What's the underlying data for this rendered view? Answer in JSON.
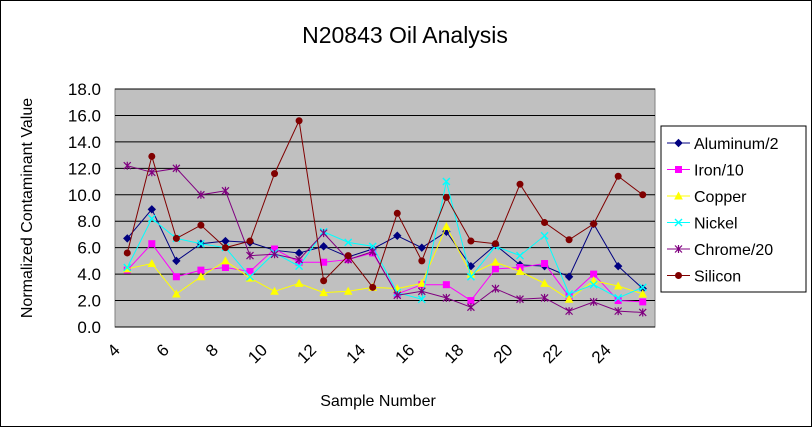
{
  "chart_data": {
    "type": "line",
    "title": "N20843 Oil Analysis",
    "xlabel": "Sample Number",
    "ylabel": "Normalized Contaminant Value",
    "xlim": [
      4,
      26
    ],
    "ylim": [
      0,
      18
    ],
    "y_ticks": [
      "0.0",
      "2.0",
      "4.0",
      "6.0",
      "8.0",
      "10.0",
      "12.0",
      "14.0",
      "16.0",
      "18.0"
    ],
    "x_ticks": [
      "4",
      "6",
      "8",
      "10",
      "12",
      "14",
      "16",
      "18",
      "20",
      "22",
      "24"
    ],
    "grid": "horizontal",
    "legend_position": "right",
    "plot_background": "#c0c0c0",
    "x": [
      4.5,
      5.5,
      6.5,
      7.5,
      8.5,
      9.5,
      10.5,
      11.5,
      12.5,
      13.5,
      14.5,
      15.5,
      16.5,
      17.5,
      18.5,
      19.5,
      20.5,
      21.5,
      22.5,
      23.5,
      24.5,
      25.5
    ],
    "series": [
      {
        "name": "Aluminum/2",
        "color": "#000080",
        "marker": "diamond",
        "values": [
          6.7,
          8.9,
          5.0,
          6.3,
          6.5,
          6.4,
          5.8,
          5.6,
          6.1,
          5.3,
          5.9,
          6.9,
          6.0,
          7.2,
          4.6,
          6.2,
          4.7,
          4.6,
          3.8,
          7.8,
          4.6,
          2.9
        ]
      },
      {
        "name": "Iron/10",
        "color": "#ff00ff",
        "marker": "square",
        "values": [
          4.3,
          6.3,
          3.8,
          4.3,
          4.5,
          4.2,
          5.9,
          4.9,
          4.9,
          5.1,
          5.6,
          2.5,
          3.2,
          3.2,
          2.0,
          4.4,
          4.5,
          4.8,
          2.3,
          4.0,
          2.0,
          1.9
        ]
      },
      {
        "name": "Copper",
        "color": "#ffff00",
        "marker": "triangle",
        "values": [
          4.4,
          4.8,
          2.5,
          3.8,
          5.0,
          3.7,
          2.7,
          3.3,
          2.6,
          2.7,
          3.0,
          2.9,
          3.3,
          7.6,
          4.0,
          4.9,
          4.2,
          3.3,
          2.1,
          3.5,
          3.1,
          2.5
        ]
      },
      {
        "name": "Nickel",
        "color": "#00ffff",
        "marker": "x",
        "values": [
          4.5,
          8.2,
          6.7,
          6.3,
          6.0,
          3.8,
          5.6,
          4.6,
          7.2,
          6.4,
          6.1,
          2.6,
          2.1,
          11.0,
          3.8,
          6.1,
          5.4,
          6.9,
          2.5,
          3.2,
          2.2,
          3.0
        ]
      },
      {
        "name": "Chrome/20",
        "color": "#800080",
        "marker": "star",
        "values": [
          12.2,
          11.7,
          12.0,
          10.0,
          10.3,
          5.4,
          5.5,
          5.1,
          7.1,
          5.1,
          5.7,
          2.4,
          2.7,
          2.2,
          1.5,
          2.9,
          2.1,
          2.2,
          1.2,
          1.9,
          1.2,
          1.1
        ]
      },
      {
        "name": "Silicon",
        "color": "#800000",
        "marker": "circle",
        "values": [
          5.6,
          12.9,
          6.7,
          7.7,
          6.0,
          6.5,
          11.6,
          15.6,
          3.5,
          5.4,
          3.0,
          8.6,
          5.0,
          9.8,
          6.5,
          6.3,
          10.8,
          7.9,
          6.6,
          7.8,
          11.4,
          10.0
        ]
      }
    ]
  }
}
